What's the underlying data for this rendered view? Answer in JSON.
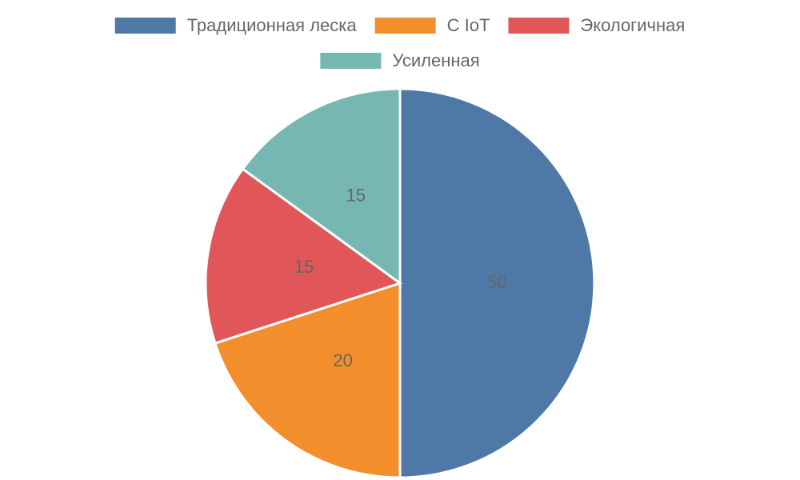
{
  "chart_data": {
    "type": "pie",
    "categories": [
      "Традиционная леска",
      "С IoT",
      "Экологичная",
      "Усиленная"
    ],
    "values": [
      50,
      20,
      15,
      15
    ],
    "colors": [
      "#4e79a7",
      "#f28e2b",
      "#e15759",
      "#76b7b2"
    ],
    "legend": "top"
  }
}
